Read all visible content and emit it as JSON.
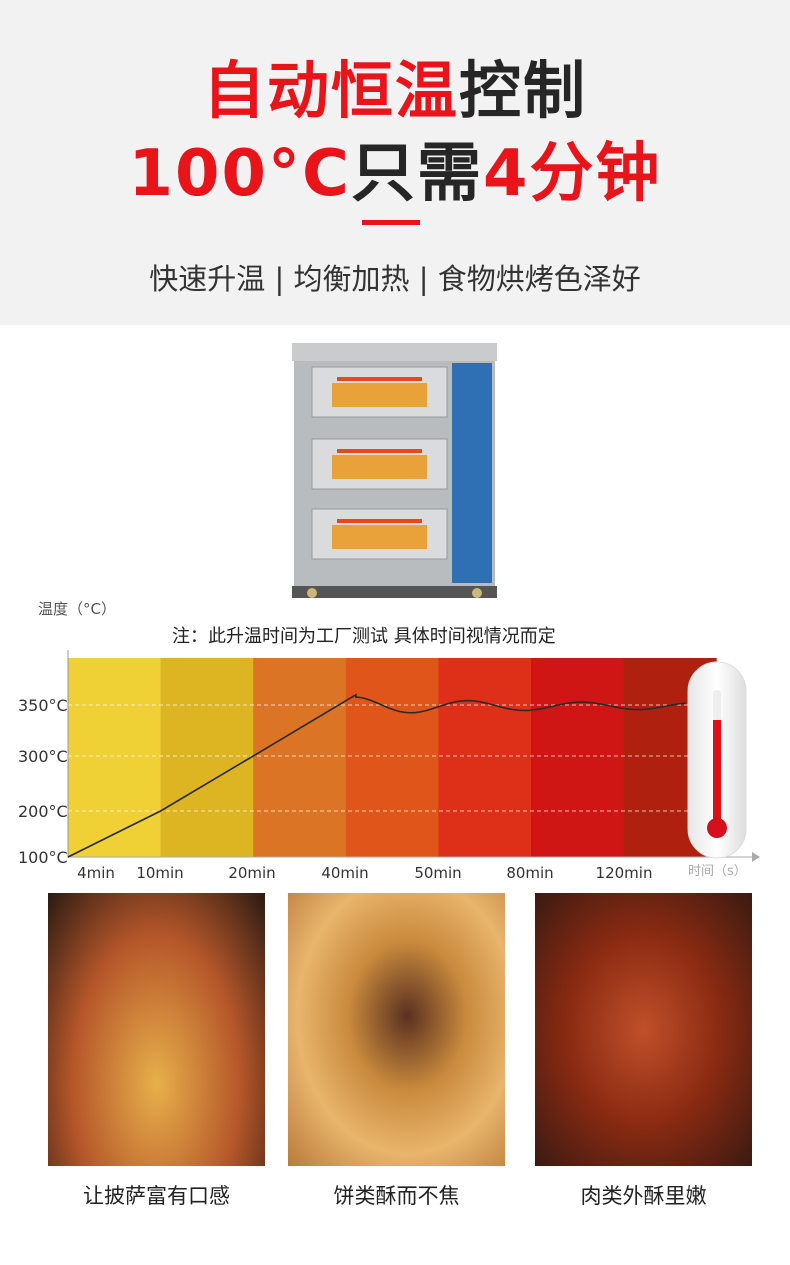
{
  "headline": {
    "line1_red": "自动恒温",
    "line1_dark": "控制",
    "line2_red_a": "100°C",
    "line2_dark": "只需",
    "line2_red_b": "4分钟"
  },
  "subtitle": "快速升温 | 均衡加热 | 食物烘烤色泽好",
  "colors": {
    "accent": "#e8141a",
    "bands": [
      "#EFD035",
      "#DDB523",
      "#DC7426",
      "#E0561A",
      "#DE3019",
      "#D01515",
      "#B0200F"
    ]
  },
  "chart_data": {
    "type": "line",
    "title": "",
    "note": "注：此升温时间为工厂测试  具体时间视情况而定",
    "ylabel": "温度（°C）",
    "xlabel": "时间（s）",
    "categories": [
      "4min",
      "10min",
      "20min",
      "40min",
      "50min",
      "80min",
      "120min"
    ],
    "yticks": [
      "100°C",
      "200°C",
      "300°C",
      "350°C"
    ],
    "ytick_values": [
      100,
      200,
      300,
      350
    ],
    "grid": true,
    "points": [
      {
        "x": "start",
        "y": 100
      },
      {
        "x": "10min",
        "y": 200
      },
      {
        "x": "20min",
        "y": 300
      },
      {
        "x": "40min",
        "y": 360
      },
      {
        "x": "50min",
        "y": 350
      },
      {
        "x": "80min",
        "y": 350
      },
      {
        "x": "120min",
        "y": 350
      }
    ]
  },
  "products": [
    {
      "caption": "让披萨富有口感",
      "icon": "pizza-photo"
    },
    {
      "caption": "饼类酥而不焦",
      "icon": "pastry-photo"
    },
    {
      "caption": "肉类外酥里嫩",
      "icon": "chicken-wings-photo"
    }
  ]
}
